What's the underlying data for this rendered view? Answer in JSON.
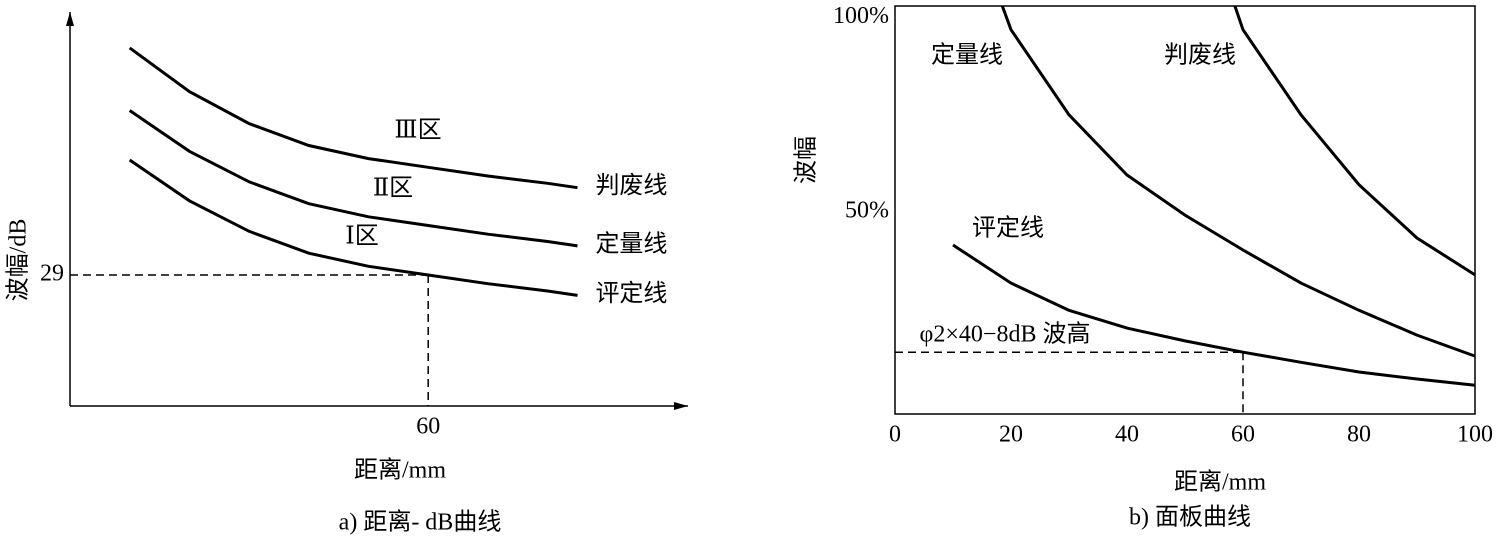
{
  "chart_data": [
    {
      "type": "line",
      "frame": "arrows",
      "x_label": "距离/mm",
      "y_label": "波幅/dB",
      "caption": "a) 距离- dB曲线",
      "xlim": [
        0,
        100
      ],
      "ylim": [
        20,
        47
      ],
      "xticks": [
        60
      ],
      "yticks": [
        29
      ],
      "annotations": [
        "Ⅲ区",
        "Ⅱ区",
        "Ⅰ区"
      ],
      "reference": {
        "x": 60,
        "y": 29
      },
      "series": [
        {
          "name": "判废线",
          "color": "#000000",
          "x": [
            10,
            20,
            30,
            40,
            50,
            60,
            70,
            80,
            85
          ],
          "values": [
            44.6,
            41.6,
            39.4,
            37.9,
            37.0,
            36.4,
            35.8,
            35.3,
            35.0
          ]
        },
        {
          "name": "定量线",
          "color": "#000000",
          "x": [
            10,
            20,
            30,
            40,
            50,
            60,
            70,
            80,
            85
          ],
          "values": [
            40.3,
            37.5,
            35.4,
            33.9,
            33.0,
            32.4,
            31.8,
            31.3,
            31.0
          ]
        },
        {
          "name": "评定线",
          "color": "#000000",
          "x": [
            10,
            20,
            30,
            40,
            50,
            60,
            70,
            80,
            85
          ],
          "values": [
            36.9,
            34.1,
            32.0,
            30.5,
            29.6,
            29.0,
            28.4,
            27.9,
            27.6
          ]
        }
      ]
    },
    {
      "type": "line",
      "frame": "box",
      "x_label": "距离/mm",
      "y_label": "波幅",
      "caption": "b) 面板曲线",
      "xlim": [
        0,
        100
      ],
      "ylim": [
        -2,
        103
      ],
      "xticks": [
        0,
        20,
        40,
        60,
        80,
        100
      ],
      "yticks": [
        {
          "value": 50,
          "label": "50%"
        },
        {
          "value": 100,
          "label": "100%"
        }
      ],
      "reference": {
        "x": 60,
        "y": 13.9,
        "label": "φ2×40−8dB 波高"
      },
      "series": [
        {
          "name": "定量线",
          "color": "#000000",
          "x": [
            18.5,
            20,
            30,
            40,
            50,
            60,
            70,
            80,
            90,
            100
          ],
          "values": [
            103,
            96.9,
            75,
            59.5,
            49.2,
            40.2,
            31.7,
            24.7,
            18.3,
            12.9
          ]
        },
        {
          "name": "判废线",
          "color": "#000000",
          "x": [
            58.6,
            60,
            70,
            80,
            90,
            100
          ],
          "values": [
            103,
            96.9,
            75,
            57,
            43.3,
            33.8
          ]
        },
        {
          "name": "评定线",
          "color": "#000000",
          "x": [
            10,
            20,
            30,
            40,
            50,
            60,
            70,
            80,
            90,
            100
          ],
          "values": [
            41.5,
            31.7,
            24.7,
            20.1,
            16.8,
            13.9,
            11.3,
            8.8,
            7.0,
            5.4
          ]
        }
      ]
    }
  ]
}
